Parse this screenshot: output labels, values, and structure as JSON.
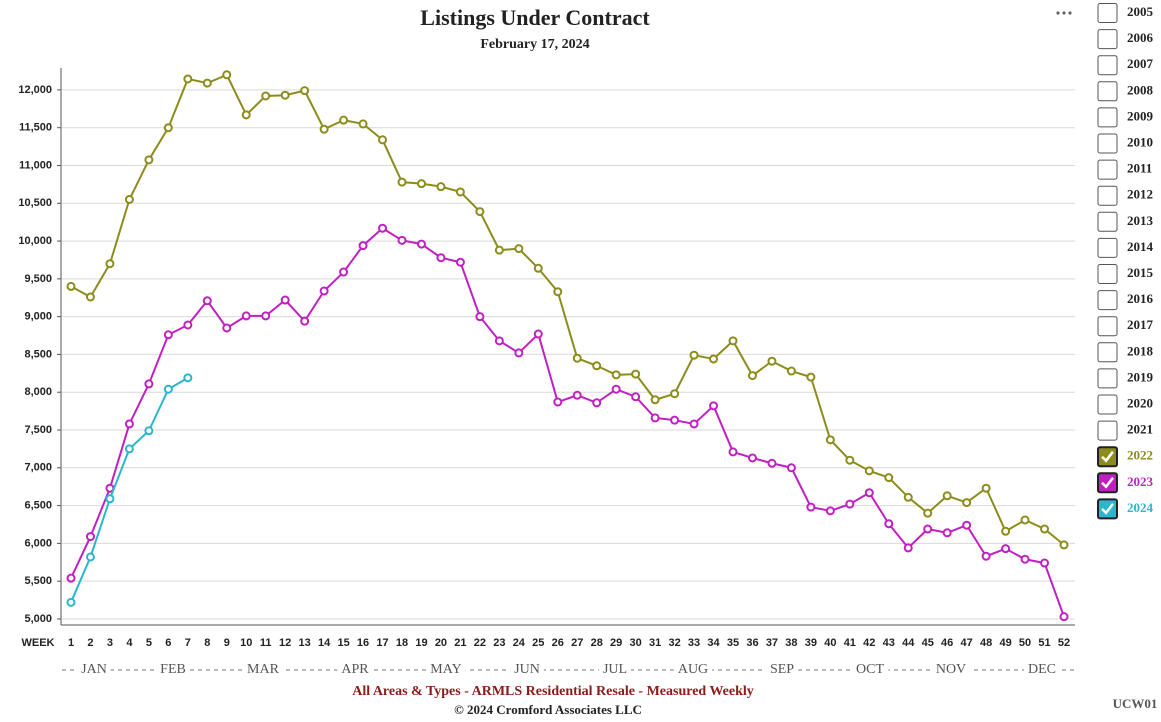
{
  "chart_data": {
    "type": "line",
    "title": "Listings Under Contract",
    "subtitle": "February 17, 2024",
    "x_label": "WEEK",
    "x": [
      1,
      2,
      3,
      4,
      5,
      6,
      7,
      8,
      9,
      10,
      11,
      12,
      13,
      14,
      15,
      16,
      17,
      18,
      19,
      20,
      21,
      22,
      23,
      24,
      25,
      26,
      27,
      28,
      29,
      30,
      31,
      32,
      33,
      34,
      35,
      36,
      37,
      38,
      39,
      40,
      41,
      42,
      43,
      44,
      45,
      46,
      47,
      48,
      49,
      50,
      51,
      52
    ],
    "xlim": [
      1,
      52
    ],
    "month_labels": [
      "JAN",
      "FEB",
      "MAR",
      "APR",
      "MAY",
      "JUN",
      "JUL",
      "AUG",
      "SEP",
      "OCT",
      "NOV",
      "DEC"
    ],
    "ylim": [
      4920,
      12290
    ],
    "yticks": [
      {
        "value": 5000,
        "label": "5,000"
      },
      {
        "value": 5500,
        "label": "5,500"
      },
      {
        "value": 6000,
        "label": "6,000"
      },
      {
        "value": 6500,
        "label": "6,500"
      },
      {
        "value": 7000,
        "label": "7,000"
      },
      {
        "value": 7500,
        "label": "7,500"
      },
      {
        "value": 8000,
        "label": "8,000"
      },
      {
        "value": 8500,
        "label": "8,500"
      },
      {
        "value": 9000,
        "label": "9,000"
      },
      {
        "value": 9500,
        "label": "9,500"
      },
      {
        "value": 10000,
        "label": "10,000"
      },
      {
        "value": 10500,
        "label": "10,500"
      },
      {
        "value": 11000,
        "label": "11,000"
      },
      {
        "value": 11500,
        "label": "11,500"
      },
      {
        "value": 12000,
        "label": "12,000"
      }
    ],
    "grid": true,
    "series": [
      {
        "name": "2022",
        "color": "#8c8c1c",
        "values": [
          9400,
          9260,
          9700,
          10550,
          11075,
          11500,
          12145,
          12090,
          12200,
          11670,
          11920,
          11930,
          11990,
          11480,
          11600,
          11550,
          11340,
          10780,
          10760,
          10720,
          10650,
          10390,
          9880,
          9900,
          9640,
          9330,
          8450,
          8350,
          8230,
          8240,
          7900,
          7980,
          8490,
          8440,
          8680,
          8220,
          8410,
          8280,
          8200,
          7370,
          7100,
          6960,
          6870,
          6610,
          6400,
          6630,
          6540,
          6730,
          6160,
          6310,
          6190,
          5980
        ]
      },
      {
        "name": "2023",
        "color": "#c21fc2",
        "values": [
          5540,
          6090,
          6730,
          7580,
          8110,
          8760,
          8890,
          9210,
          8850,
          9010,
          9010,
          9220,
          8940,
          9340,
          9590,
          9940,
          10170,
          10010,
          9960,
          9780,
          9720,
          9000,
          8680,
          8520,
          8770,
          7870,
          7960,
          7860,
          8040,
          7940,
          7660,
          7630,
          7580,
          7820,
          7210,
          7130,
          7060,
          7000,
          6480,
          6430,
          6520,
          6670,
          6260,
          5940,
          6190,
          6140,
          6240,
          5830,
          5930,
          5790,
          5740,
          5030
        ]
      },
      {
        "name": "2024",
        "color": "#2bb5cf",
        "values": [
          5220,
          5820,
          6590,
          7250,
          7490,
          8040,
          8190,
          null,
          null,
          null,
          null,
          null,
          null,
          null,
          null,
          null,
          null,
          null,
          null,
          null,
          null,
          null,
          null,
          null,
          null,
          null,
          null,
          null,
          null,
          null,
          null,
          null,
          null,
          null,
          null,
          null,
          null,
          null,
          null,
          null,
          null,
          null,
          null,
          null,
          null,
          null,
          null,
          null,
          null,
          null,
          null,
          null
        ]
      }
    ],
    "hidden_series": [
      "2005",
      "2006",
      "2007",
      "2008",
      "2009",
      "2010",
      "2011",
      "2012",
      "2013",
      "2014",
      "2015",
      "2016",
      "2017",
      "2018",
      "2019",
      "2020",
      "2021"
    ],
    "footer_title": "All Areas & Types - ARMLS Residential Resale - Measured Weekly",
    "copyright": "© 2024 Cromford Associates LLC",
    "chart_code": "UCW01"
  }
}
